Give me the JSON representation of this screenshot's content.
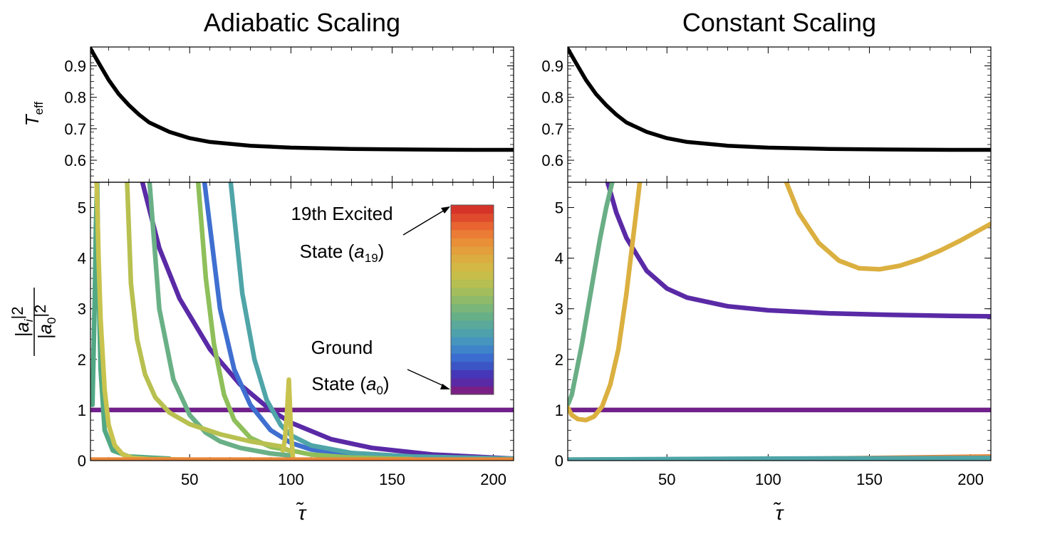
{
  "chart_data": {
    "type": "line",
    "panels": [
      {
        "title": "Adiabatic Scaling",
        "xlabel": "τ̃",
        "xlim": [
          1,
          210
        ],
        "xticks": [
          50,
          100,
          150,
          200
        ],
        "top": {
          "ylabel_main": "T",
          "ylabel_sub": "eff",
          "ylim": [
            0.53,
            0.96
          ],
          "yticks": [
            0.6,
            0.7,
            0.8,
            0.9
          ],
          "yticklabels": [
            "0.6",
            "0.7",
            "0.8",
            "0.9"
          ],
          "series": [
            {
              "name": "T_eff",
              "color": "#000000",
              "x": [
                1,
                5,
                10,
                15,
                20,
                25,
                30,
                40,
                50,
                60,
                80,
                100,
                130,
                160,
                190,
                210
              ],
              "y": [
                0.955,
                0.91,
                0.855,
                0.81,
                0.775,
                0.745,
                0.72,
                0.69,
                0.67,
                0.658,
                0.646,
                0.64,
                0.636,
                0.634,
                0.633,
                0.633
              ]
            }
          ]
        },
        "bottom": {
          "ylabel_num": "|a",
          "ylabel_num_sub": "i",
          "ylabel_num_sup": "|2",
          "ylabel_den": "|a",
          "ylabel_den_sub": "0",
          "ylabel_den_sup": "|2",
          "ylim": [
            0,
            5.5
          ],
          "yticks": [
            0,
            1,
            2,
            3,
            4,
            5
          ],
          "yticklabels": [
            "0",
            "1",
            "2",
            "3",
            "4",
            "5"
          ],
          "series": [
            {
              "name": "ground state a0",
              "color": "#70208a",
              "x": [
                1,
                210
              ],
              "y": [
                1,
                1
              ]
            },
            {
              "name": "purple",
              "color": "#5a2aa6",
              "x": [
                26,
                35,
                45,
                60,
                75,
                90,
                100,
                120,
                140,
                170,
                210
              ],
              "y": [
                5.6,
                4.2,
                3.2,
                2.2,
                1.5,
                1.0,
                0.75,
                0.42,
                0.25,
                0.12,
                0.04
              ]
            },
            {
              "name": "blue",
              "color": "#3f6fd0",
              "x": [
                57,
                65,
                72,
                80,
                90,
                100,
                110,
                125,
                145,
                175,
                210
              ],
              "y": [
                5.6,
                3.0,
                1.8,
                1.1,
                0.6,
                0.35,
                0.22,
                0.13,
                0.08,
                0.05,
                0.03
              ]
            },
            {
              "name": "teal",
              "color": "#4fa5a8",
              "x": [
                70,
                76,
                82,
                88,
                95,
                100,
                110,
                130,
                160,
                210
              ],
              "y": [
                5.6,
                3.3,
                2.0,
                1.2,
                0.7,
                0.5,
                0.3,
                0.15,
                0.08,
                0.04
              ]
            },
            {
              "name": "green left",
              "color": "#52a884",
              "x": [
                2,
                3,
                3.7,
                4.3,
                5,
                6,
                8,
                12,
                20,
                40
              ],
              "y": [
                1.1,
                3.0,
                4.7,
                5.5,
                3.5,
                1.8,
                0.6,
                0.2,
                0.08,
                0.04
              ]
            },
            {
              "name": "green mid",
              "color": "#6ab086",
              "x": [
                30,
                35,
                42,
                50,
                58,
                65,
                75,
                90,
                100
              ],
              "y": [
                5.6,
                3.0,
                1.6,
                0.9,
                0.55,
                0.38,
                0.25,
                0.14,
                0.1
              ]
            },
            {
              "name": "light green",
              "color": "#8ebf5a",
              "x": [
                54,
                58,
                62,
                67,
                72,
                80,
                90,
                100,
                110,
                130,
                160
              ],
              "y": [
                5.6,
                3.6,
                2.3,
                1.3,
                0.8,
                0.45,
                0.27,
                0.2,
                0.12,
                0.06,
                0.03
              ]
            },
            {
              "name": "yellow left",
              "color": "#c8c34e",
              "x": [
                4,
                5,
                6,
                8,
                10,
                13,
                17,
                22,
                30,
                50
              ],
              "y": [
                5.6,
                4.0,
                2.8,
                1.4,
                0.7,
                0.3,
                0.12,
                0.05,
                0.03,
                0.02
              ]
            },
            {
              "name": "yellow 2",
              "color": "#b8c050",
              "x": [
                19,
                21,
                24,
                28,
                33,
                40,
                50,
                65,
                80,
                95,
                98,
                100
              ],
              "y": [
                5.6,
                3.5,
                2.4,
                1.7,
                1.25,
                0.95,
                0.72,
                0.52,
                0.38,
                0.28,
                0.22,
                0.18
              ]
            },
            {
              "name": "yellow jump",
              "color": "#c8c34e",
              "x": [
                96,
                97,
                98,
                99,
                100,
                101
              ],
              "y": [
                0.2,
                0.4,
                0.9,
                1.6,
                0.6,
                0.05
              ]
            },
            {
              "name": "near zero red",
              "color": "#d8322a",
              "x": [
                1,
                210
              ],
              "y": [
                0.01,
                0.01
              ]
            },
            {
              "name": "near zero orange",
              "color": "#e8863a",
              "x": [
                1,
                210
              ],
              "y": [
                0.02,
                0.02
              ]
            }
          ],
          "annotations": [
            {
              "label_line1": "19th Excited",
              "label_line2a": "State (",
              "label_line2b": "a",
              "label_line2sub": "19",
              "label_line2c": ")",
              "points_to": "top of colorbar"
            },
            {
              "label_line1": "Ground",
              "label_line2a": "State (",
              "label_line2b": "a",
              "label_line2sub": "0",
              "label_line2c": ")",
              "points_to": "bottom of colorbar"
            }
          ],
          "colorbar_colors": [
            "#7a1f85",
            "#5a2aa6",
            "#4637b8",
            "#3c55c5",
            "#3b6ccf",
            "#3f84c9",
            "#4595be",
            "#4ea1ab",
            "#5aa99a",
            "#67b087",
            "#7ab579",
            "#8fba69",
            "#a3bd5d",
            "#b6bf51",
            "#c7be49",
            "#d3b845",
            "#dbad40",
            "#e29f3c",
            "#e88f38",
            "#eb7c35",
            "#e86531",
            "#e04a2c",
            "#d63328"
          ]
        }
      },
      {
        "title": "Constant Scaling",
        "xlabel": "τ̃",
        "xlim": [
          1,
          210
        ],
        "xticks": [
          50,
          100,
          150,
          200
        ],
        "top": {
          "ylim": [
            0.53,
            0.96
          ],
          "yticks": [
            0.6,
            0.7,
            0.8,
            0.9
          ],
          "yticklabels": [
            "0.6",
            "0.7",
            "0.8",
            "0.9"
          ],
          "series": [
            {
              "name": "T_eff",
              "color": "#000000",
              "x": [
                1,
                5,
                10,
                15,
                20,
                25,
                30,
                40,
                50,
                60,
                80,
                100,
                130,
                160,
                190,
                210
              ],
              "y": [
                0.955,
                0.91,
                0.855,
                0.81,
                0.775,
                0.745,
                0.72,
                0.69,
                0.67,
                0.658,
                0.646,
                0.64,
                0.636,
                0.634,
                0.633,
                0.633
              ]
            }
          ]
        },
        "bottom": {
          "ylim": [
            0,
            5.5
          ],
          "yticks": [
            0,
            1,
            2,
            3,
            4,
            5
          ],
          "yticklabels": [
            "0",
            "1",
            "2",
            "3",
            "4",
            "5"
          ],
          "series": [
            {
              "name": "ground state a0",
              "color": "#70208a",
              "x": [
                1,
                210
              ],
              "y": [
                1,
                1
              ]
            },
            {
              "name": "purple",
              "color": "#5a2aa6",
              "x": [
                20,
                25,
                30,
                40,
                50,
                60,
                80,
                100,
                130,
                160,
                190,
                210
              ],
              "y": [
                5.6,
                4.9,
                4.4,
                3.75,
                3.4,
                3.22,
                3.05,
                2.97,
                2.91,
                2.88,
                2.86,
                2.85
              ]
            },
            {
              "name": "green",
              "color": "#6aae86",
              "x": [
                1,
                3,
                5,
                8,
                11,
                14,
                17,
                20,
                23,
                26
              ],
              "y": [
                1.1,
                1.3,
                1.7,
                2.3,
                3.0,
                3.7,
                4.4,
                5.0,
                5.5,
                6.0
              ]
            },
            {
              "name": "gold U",
              "color": "#dbb040",
              "x": [
                1,
                3,
                6,
                10,
                14,
                18,
                22,
                26,
                30,
                33,
                36,
                38
              ],
              "y": [
                1.05,
                0.9,
                0.82,
                0.8,
                0.87,
                1.07,
                1.5,
                2.2,
                3.3,
                4.3,
                5.3,
                6.0
              ]
            },
            {
              "name": "gold bowl",
              "color": "#dbb040",
              "x": [
                108,
                115,
                125,
                135,
                145,
                155,
                165,
                175,
                185,
                195,
                210
              ],
              "y": [
                5.6,
                4.9,
                4.3,
                3.95,
                3.8,
                3.78,
                3.85,
                3.98,
                4.15,
                4.35,
                4.68
              ]
            },
            {
              "name": "near zero red",
              "color": "#d8322a",
              "x": [
                1,
                210
              ],
              "y": [
                0.01,
                0.01
              ]
            },
            {
              "name": "near zero orange",
              "color": "#e8863a",
              "x": [
                1,
                100,
                150,
                210
              ],
              "y": [
                0.02,
                0.03,
                0.05,
                0.08
              ]
            },
            {
              "name": "near zero teal",
              "color": "#4fa5a8",
              "x": [
                1,
                100,
                210
              ],
              "y": [
                0.02,
                0.04,
                0.05
              ]
            }
          ]
        }
      }
    ]
  }
}
